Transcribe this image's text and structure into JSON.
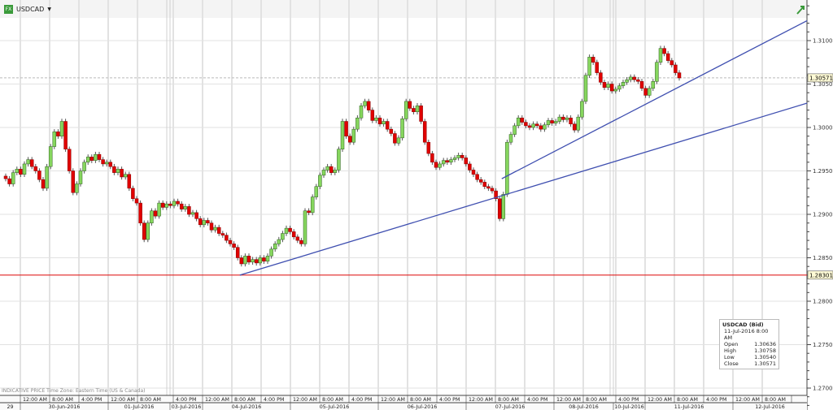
{
  "header": {
    "symbol": "USDCAD",
    "icon": "fx-icon",
    "dropdown_icon": "caret-down-icon"
  },
  "footer": {
    "note": "INDICATIVE PRICE   Time Zone: Eastern Time (US & Canada)"
  },
  "info_box": {
    "title": "USDCAD (Bid)",
    "datetime": "11-Jul-2016 8:00 AM",
    "rows": [
      {
        "k": "Open",
        "v": "1.30636"
      },
      {
        "k": "High",
        "v": "1.30758"
      },
      {
        "k": "Low",
        "v": "1.30540"
      },
      {
        "k": "Close",
        "v": "1.30571"
      }
    ]
  },
  "colors": {
    "up": "#86d65e",
    "down": "#e00000",
    "trend": "#3f4fb0",
    "support": "#e02020",
    "grid": "#e2e2e2"
  },
  "chart_data": {
    "type": "candlestick",
    "interval": "1 hour",
    "ylim": [
      1.2665,
      1.3145
    ],
    "yticks": [
      "1.27000",
      "1.27500",
      "1.28000",
      "1.28500",
      "1.29000",
      "1.29500",
      "1.30000",
      "1.30500",
      "1.31000"
    ],
    "current_price": "1.30571",
    "support_level": "1.28301",
    "first_open": 1.2944,
    "closes": [
      1.2941,
      1.2935,
      1.2948,
      1.2952,
      1.2946,
      1.2958,
      1.2963,
      1.2955,
      1.295,
      1.294,
      1.293,
      1.2955,
      1.2978,
      1.2995,
      1.299,
      1.3007,
      1.2975,
      1.295,
      1.2925,
      1.2935,
      1.295,
      1.296,
      1.2966,
      1.2962,
      1.2969,
      1.2963,
      1.2958,
      1.296,
      1.2955,
      1.2948,
      1.2952,
      1.2943,
      1.2946,
      1.293,
      1.2918,
      1.2913,
      1.289,
      1.2871,
      1.289,
      1.2904,
      1.2898,
      1.2913,
      1.2908,
      1.2912,
      1.291,
      1.2915,
      1.2912,
      1.2906,
      1.2909,
      1.29,
      1.2902,
      1.2895,
      1.2888,
      1.2893,
      1.289,
      1.2882,
      1.2885,
      1.2878,
      1.2876,
      1.287,
      1.2866,
      1.2862,
      1.285,
      1.2843,
      1.2852,
      1.2845,
      1.2848,
      1.2844,
      1.285,
      1.2846,
      1.2852,
      1.286,
      1.2866,
      1.2871,
      1.2878,
      1.2884,
      1.288,
      1.2874,
      1.287,
      1.2866,
      1.2904,
      1.2902,
      1.292,
      1.2932,
      1.2945,
      1.2951,
      1.2955,
      1.2948,
      1.2951,
      1.2975,
      1.3007,
      1.299,
      1.2983,
      1.2998,
      1.3011,
      1.3025,
      1.303,
      1.302,
      1.3008,
      1.3011,
      1.3004,
      1.3007,
      1.2998,
      1.2993,
      1.2982,
      1.2988,
      1.301,
      1.303,
      1.3022,
      1.3018,
      1.3025,
      1.3007,
      1.2983,
      1.297,
      1.296,
      1.2954,
      1.2958,
      1.2962,
      1.296,
      1.2963,
      1.2965,
      1.2968,
      1.2965,
      1.2958,
      1.2951,
      1.2946,
      1.294,
      1.2937,
      1.2932,
      1.293,
      1.2927,
      1.2918,
      1.2895,
      1.2923,
      1.2983,
      1.2992,
      1.3002,
      1.3011,
      1.3006,
      1.3002,
      1.3,
      1.3004,
      1.3002,
      1.2998,
      1.3003,
      1.3008,
      1.3005,
      1.3007,
      1.3012,
      1.3009,
      1.3011,
      1.3004,
      1.2997,
      1.3012,
      1.303,
      1.306,
      1.3081,
      1.3075,
      1.3063,
      1.3052,
      1.3046,
      1.305,
      1.3042,
      1.3044,
      1.3048,
      1.3052,
      1.3055,
      1.3058,
      1.3055,
      1.3053,
      1.3045,
      1.3037,
      1.3045,
      1.3053,
      1.3075,
      1.3091,
      1.3085,
      1.3077,
      1.3072,
      1.3063,
      1.3057
    ],
    "trend_lines": [
      {
        "from": [
          63,
          1.283
        ],
        "to": [
          214.6,
          1.3028
        ]
      },
      {
        "from": [
          133,
          1.2941
        ],
        "to": [
          214.6,
          1.3123
        ]
      }
    ],
    "time_labels": [
      "12:00 AM",
      "8:00 AM",
      "4:00 PM",
      "12:00 AM",
      "8:00 AM",
      "4:00 PM",
      "12:00 AM",
      "8:00 AM",
      "4:00 PM",
      "12:00 AM",
      "8:00 AM",
      "4:00 PM",
      "12:00 AM",
      "8:00 AM",
      "4:00 PM",
      "12:00 AM",
      "8:00 AM",
      "4:00 PM",
      "12:00 AM",
      "8:00 AM",
      "4:00 PM",
      "12:00 AM",
      "8:00 AM",
      "4:00 PM",
      "12:00 AM",
      "8:00 AM"
    ],
    "date_labels": [
      "29",
      "30-Jun-2016",
      "01-Jul-2016",
      "03-Jul-2016",
      "04-Jul-2016",
      "05-Jul-2016",
      "06-Jul-2016",
      "07-Jul-2016",
      "08-Jul-2016",
      "10-Jul-2016",
      "11-Jul-2016",
      "12-Jul-2016"
    ]
  }
}
